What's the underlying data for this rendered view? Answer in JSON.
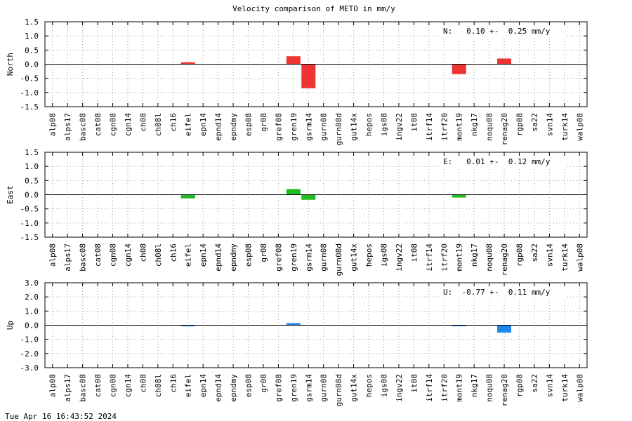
{
  "footer_timestamp": "Tue Apr 16 16:43:52 2024",
  "chart_data": {
    "type": "bar",
    "title": "Velocity comparison of METO in mm/y",
    "categories": [
      "alp08",
      "alps17",
      "basc08",
      "cat08",
      "cgn08",
      "cgn14",
      "ch08",
      "ch08l",
      "ch16",
      "eifel",
      "epn14",
      "epnd14",
      "epndmy",
      "esp08",
      "gr08",
      "gref08",
      "gren19",
      "gsrm14",
      "gurn08",
      "gurn08d",
      "gut14x",
      "hepos",
      "igs08",
      "ingv22",
      "it08",
      "itrf14",
      "itrf20",
      "mont19",
      "nkg17",
      "noqu08",
      "renag20",
      "rgp08",
      "sa22",
      "svn14",
      "turk14",
      "walp08"
    ],
    "grid": true,
    "panels": [
      {
        "ylabel": "North",
        "ylim": [
          -1.5,
          1.5
        ],
        "yticks": [
          "1.5",
          "1.0",
          "0.5",
          "0.0",
          "-0.5",
          "-1.0",
          "-1.5"
        ],
        "color": "#ee3333",
        "annotation": "N:   0.10 +-  0.25 mm/y",
        "values": [
          null,
          null,
          null,
          null,
          null,
          null,
          null,
          null,
          null,
          0.07,
          null,
          null,
          null,
          null,
          null,
          null,
          0.28,
          -0.85,
          null,
          null,
          null,
          null,
          null,
          null,
          null,
          null,
          null,
          -0.35,
          null,
          null,
          0.2,
          null,
          null,
          null,
          null,
          null
        ]
      },
      {
        "ylabel": "East",
        "ylim": [
          -1.5,
          1.5
        ],
        "yticks": [
          "1.5",
          "1.0",
          "0.5",
          "0.0",
          "-0.5",
          "-1.0",
          "-1.5"
        ],
        "color": "#22bb22",
        "annotation": "E:   0.01 +-  0.12 mm/y",
        "values": [
          null,
          null,
          null,
          null,
          null,
          null,
          null,
          null,
          null,
          -0.13,
          null,
          null,
          null,
          null,
          null,
          null,
          0.2,
          -0.18,
          null,
          null,
          null,
          null,
          null,
          null,
          null,
          null,
          null,
          -0.1,
          null,
          null,
          null,
          null,
          null,
          null,
          null,
          null
        ]
      },
      {
        "ylabel": "Up",
        "ylim": [
          -3.0,
          3.0
        ],
        "yticks": [
          "3.0",
          "2.0",
          "1.0",
          "0.0",
          "-1.0",
          "-2.0",
          "-3.0"
        ],
        "color": "#1e88ee",
        "annotation": "U:  -0.77 +-  0.11 mm/y",
        "values": [
          null,
          null,
          null,
          null,
          null,
          null,
          null,
          null,
          null,
          -0.08,
          null,
          null,
          null,
          null,
          null,
          null,
          0.15,
          null,
          null,
          null,
          null,
          null,
          null,
          null,
          null,
          null,
          null,
          -0.07,
          null,
          null,
          -0.52,
          null,
          null,
          null,
          null,
          null
        ]
      }
    ]
  }
}
